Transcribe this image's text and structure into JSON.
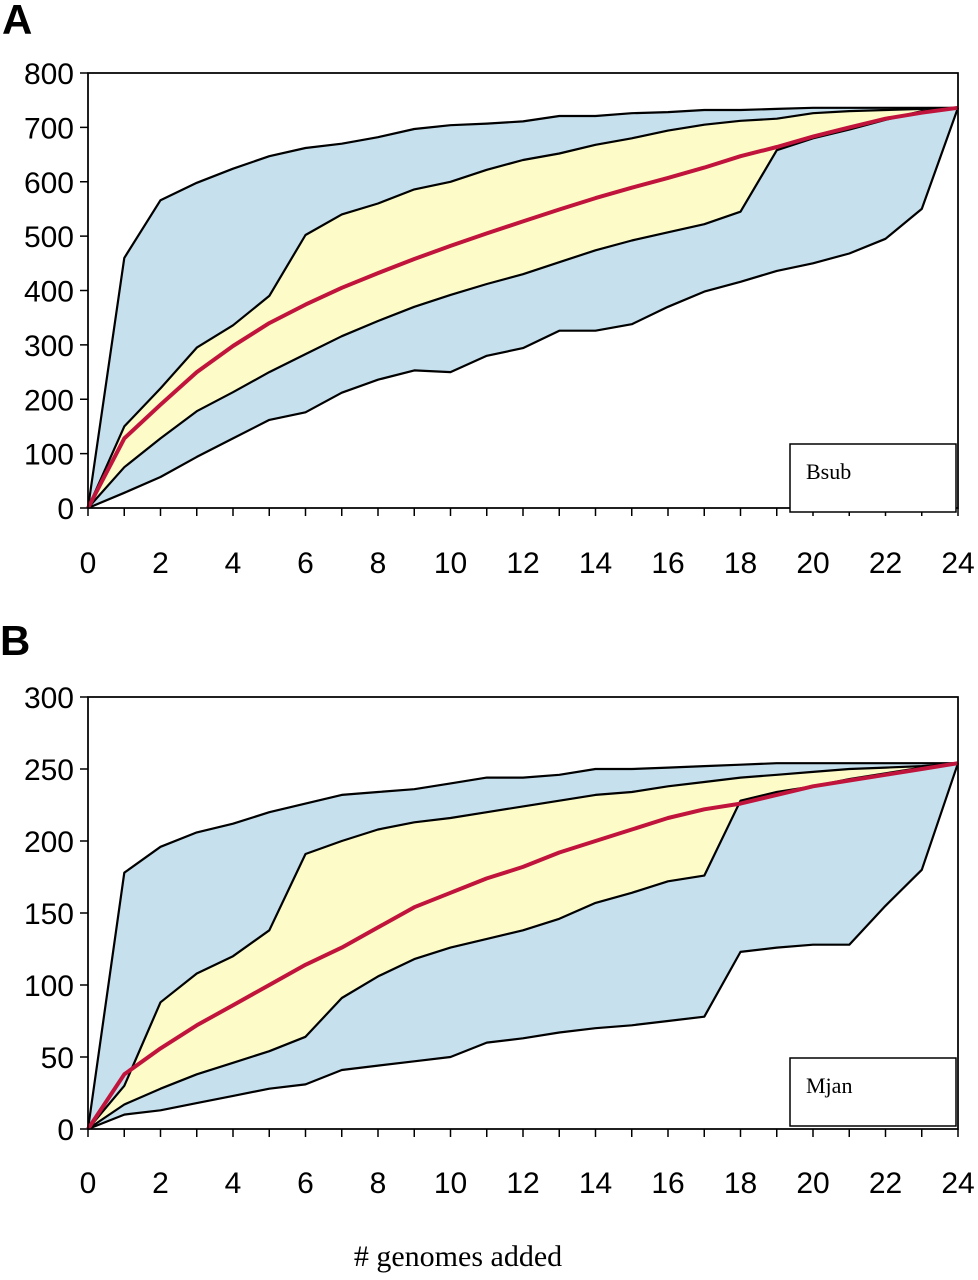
{
  "xlabel": "# genomes  added",
  "colors": {
    "band_outer": "#c6e0ee",
    "band_inner": "#fdfbc8",
    "mean_line": "#c0143c",
    "outline": "#000000"
  },
  "chart_data": [
    {
      "panel_label": "A",
      "type": "area",
      "legend": "Bsub",
      "legend_position": "bottom-right",
      "xlim": [
        0,
        24
      ],
      "ylim": [
        0,
        800
      ],
      "x_ticks": [
        0,
        2,
        4,
        6,
        8,
        10,
        12,
        14,
        16,
        18,
        20,
        22,
        24
      ],
      "y_ticks": [
        0,
        100,
        200,
        300,
        400,
        500,
        600,
        700,
        800
      ],
      "x": [
        0,
        1,
        2,
        3,
        4,
        5,
        6,
        7,
        8,
        9,
        10,
        11,
        12,
        13,
        14,
        15,
        16,
        17,
        18,
        19,
        20,
        21,
        22,
        23,
        24
      ],
      "series": [
        {
          "role": "max",
          "values": [
            0,
            460,
            566,
            598,
            624,
            647,
            662,
            670,
            682,
            697,
            704,
            707,
            711,
            721,
            721,
            726,
            728,
            732,
            732,
            734,
            736,
            736,
            736,
            736,
            736
          ]
        },
        {
          "role": "upper_band",
          "values": [
            0,
            150,
            220,
            295,
            336,
            390,
            502,
            540,
            560,
            586,
            600,
            622,
            640,
            652,
            668,
            680,
            694,
            705,
            712,
            716,
            726,
            730,
            732,
            734,
            736
          ]
        },
        {
          "role": "mean",
          "values": [
            0,
            128,
            190,
            250,
            298,
            340,
            374,
            405,
            432,
            458,
            482,
            505,
            527,
            549,
            570,
            589,
            607,
            626,
            647,
            664,
            683,
            700,
            716,
            727,
            736
          ]
        },
        {
          "role": "lower_band",
          "values": [
            0,
            75,
            128,
            178,
            213,
            250,
            283,
            316,
            344,
            370,
            392,
            412,
            430,
            452,
            474,
            492,
            507,
            522,
            545,
            658,
            680,
            696,
            714,
            730,
            736
          ]
        },
        {
          "role": "min",
          "values": [
            0,
            28,
            57,
            94,
            128,
            162,
            176,
            212,
            236,
            253,
            250,
            280,
            294,
            326,
            326,
            338,
            370,
            398,
            416,
            436,
            450,
            468,
            495,
            550,
            736
          ]
        }
      ]
    },
    {
      "panel_label": "B",
      "type": "area",
      "legend": "Mjan",
      "legend_position": "bottom-right",
      "xlim": [
        0,
        24
      ],
      "ylim": [
        0,
        300
      ],
      "x_ticks": [
        0,
        2,
        4,
        6,
        8,
        10,
        12,
        14,
        16,
        18,
        20,
        22,
        24
      ],
      "y_ticks": [
        0,
        50,
        100,
        150,
        200,
        250,
        300
      ],
      "x": [
        0,
        1,
        2,
        3,
        4,
        5,
        6,
        7,
        8,
        9,
        10,
        11,
        12,
        13,
        14,
        15,
        16,
        17,
        18,
        19,
        20,
        21,
        22,
        23,
        24
      ],
      "series": [
        {
          "role": "max",
          "values": [
            0,
            178,
            196,
            206,
            212,
            220,
            226,
            232,
            234,
            236,
            240,
            244,
            244,
            246,
            250,
            250,
            251,
            252,
            253,
            254,
            254,
            254,
            254,
            254,
            254
          ]
        },
        {
          "role": "upper_band",
          "values": [
            0,
            30,
            88,
            108,
            120,
            138,
            191,
            200,
            208,
            213,
            216,
            220,
            224,
            228,
            232,
            234,
            238,
            241,
            244,
            246,
            248,
            250,
            251,
            252,
            254
          ]
        },
        {
          "role": "mean",
          "values": [
            0,
            38,
            56,
            72,
            86,
            100,
            114,
            126,
            140,
            154,
            164,
            174,
            182,
            192,
            200,
            208,
            216,
            222,
            226,
            232,
            238,
            242,
            246,
            250,
            254
          ]
        },
        {
          "role": "lower_band",
          "values": [
            0,
            17,
            28,
            38,
            46,
            54,
            64,
            91,
            106,
            118,
            126,
            132,
            138,
            146,
            157,
            164,
            172,
            176,
            228,
            234,
            238,
            243,
            247,
            251,
            254
          ]
        },
        {
          "role": "min",
          "values": [
            0,
            10,
            13,
            18,
            23,
            28,
            31,
            41,
            44,
            47,
            50,
            60,
            63,
            67,
            70,
            72,
            75,
            78,
            123,
            126,
            128,
            128,
            155,
            180,
            254
          ]
        }
      ]
    }
  ]
}
